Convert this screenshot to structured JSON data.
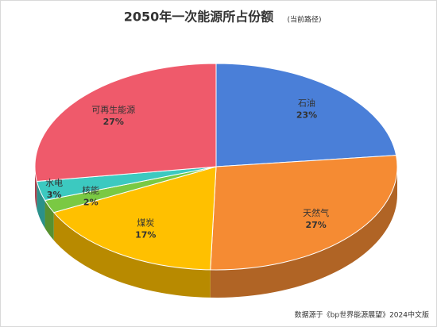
{
  "chart_data": {
    "type": "pie",
    "title": "2050年一次能源所占份额",
    "subtitle": "(当前路径)",
    "source": "数据源于《bp世界能源展望》2024中文版",
    "categories": [
      "石油",
      "天然气",
      "煤炭",
      "核能",
      "水电",
      "可再生能源"
    ],
    "values": [
      23,
      27,
      17,
      2,
      3,
      27
    ],
    "value_labels": [
      "23%",
      "27%",
      "17%",
      "2%",
      "3%",
      "27%"
    ],
    "colors": [
      "#4a7fd8",
      "#f58b33",
      "#ffc000",
      "#7ac943",
      "#3cc9c0",
      "#ef5a6b"
    ]
  }
}
